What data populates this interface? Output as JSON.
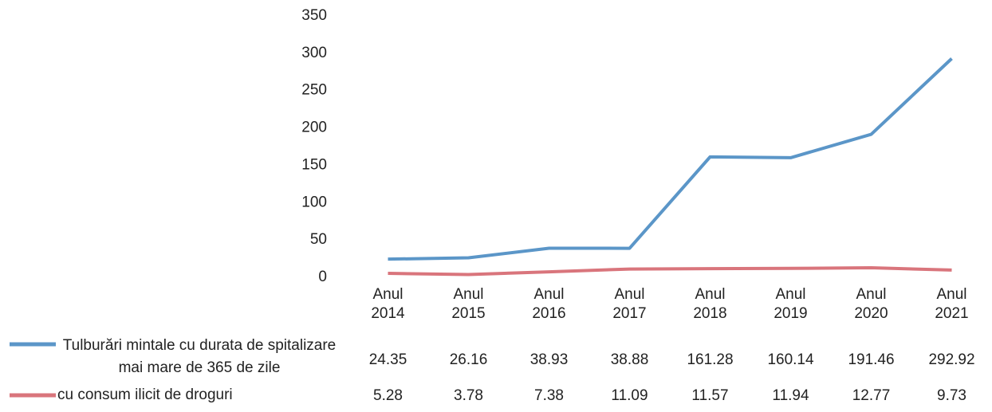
{
  "chart_data": {
    "type": "line",
    "categories": [
      "Anul 2014",
      "Anul 2015",
      "Anul 2016",
      "Anul 2017",
      "Anul 2018",
      "Anul 2019",
      "Anul 2020",
      "Anul 2021"
    ],
    "series": [
      {
        "name": "Tulburări mintale cu durata de spitalizare mai mare de 365 de zile",
        "color": "#5b96c8",
        "values": [
          24.35,
          26.16,
          38.93,
          38.88,
          161.28,
          160.14,
          191.46,
          292.92
        ]
      },
      {
        "name": "cu consum ilicit de droguri",
        "color": "#d9757c",
        "values": [
          5.28,
          3.78,
          7.38,
          11.09,
          11.57,
          11.94,
          12.77,
          9.73
        ]
      }
    ],
    "ylim": [
      0,
      350
    ],
    "yticks": [
      0,
      50,
      100,
      150,
      200,
      250,
      300,
      350
    ]
  }
}
